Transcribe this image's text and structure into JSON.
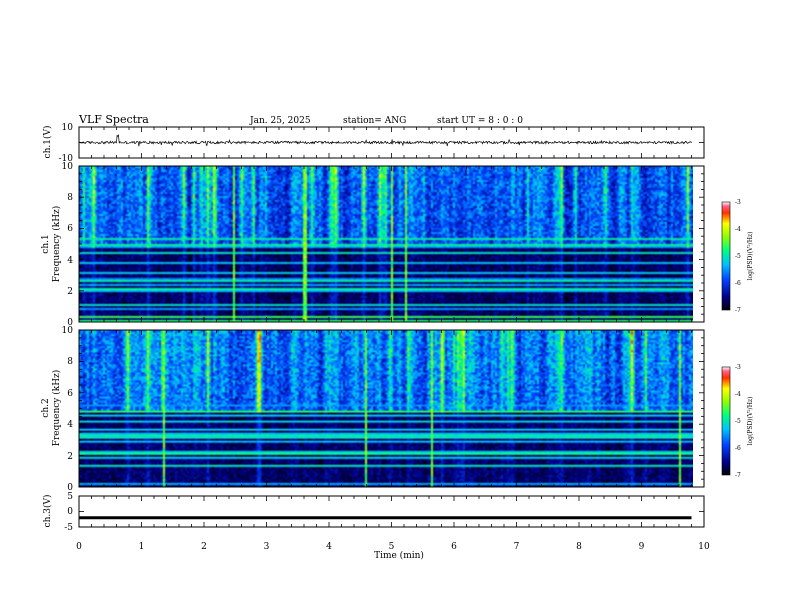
{
  "header": {
    "title": "VLF Spectra",
    "date": "Jan. 25, 2025",
    "station": "station= ANG",
    "start_ut": "start UT =  8 : 0  : 0"
  },
  "chart_data": [
    {
      "type": "line",
      "panel": "ch1-waveform",
      "ylabel": "ch.1(V)",
      "xlim": [
        0,
        10
      ],
      "ylim": [
        -10,
        10
      ],
      "yticks": [
        "10",
        "-10"
      ],
      "baseline": 0,
      "description_of_series": "noise trace around 0 V from 0 to 9.8 min"
    },
    {
      "type": "heatmap",
      "panel": "ch1-spectrogram",
      "ylabel": "ch.1",
      "ylabel2": "Frequency (kHz)",
      "xlim": [
        0,
        10
      ],
      "ylim": [
        0,
        10
      ],
      "yticks": [
        "0",
        "2",
        "4",
        "6",
        "8",
        "10"
      ],
      "data_end_min": 9.8,
      "colorbar": {
        "label": "log(PSD)(V²/Hz)",
        "range": [
          -7,
          -3
        ],
        "ticks": [
          "-3",
          "-4",
          "-5",
          "-6",
          "-7"
        ]
      }
    },
    {
      "type": "heatmap",
      "panel": "ch2-spectrogram",
      "ylabel": "ch.2",
      "ylabel2": "Frequency (kHz)",
      "xlim": [
        0,
        10
      ],
      "ylim": [
        0,
        10
      ],
      "yticks": [
        "0",
        "2",
        "4",
        "6",
        "8",
        "10"
      ],
      "data_end_min": 9.8,
      "colorbar": {
        "label": "log(PSD)(V²/Hz)",
        "range": [
          -7,
          -3
        ],
        "ticks": [
          "-3",
          "-4",
          "-5",
          "-6",
          "-7"
        ]
      }
    },
    {
      "type": "line",
      "panel": "ch3-waveform",
      "ylabel": "ch.3(V)",
      "xlim": [
        0,
        10
      ],
      "ylim": [
        -5,
        5
      ],
      "yticks": [
        "5",
        "0",
        "-5"
      ],
      "baseline": -2,
      "data_end_min": 9.8
    }
  ],
  "x_axis": {
    "label": "Time (min)",
    "ticks": [
      "0",
      "1",
      "2",
      "3",
      "4",
      "5",
      "6",
      "7",
      "8",
      "9",
      "10"
    ]
  }
}
